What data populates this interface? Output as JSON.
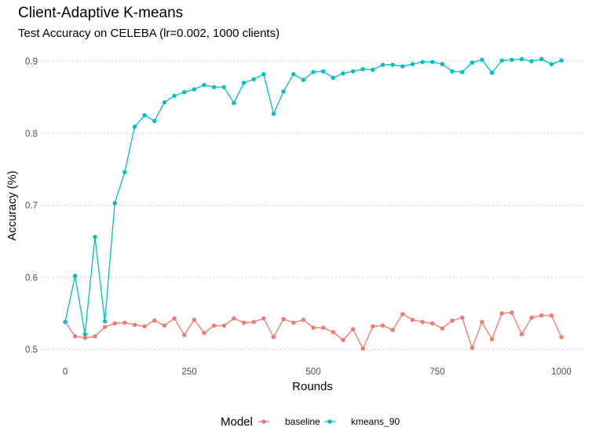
{
  "chart_data": {
    "type": "line",
    "title": "Client-Adaptive K-means",
    "subtitle": "Test Accuracy on CELEBA (lr=0.002, 1000 clients)",
    "xlabel": "Rounds",
    "ylabel": "Accuracy (%)",
    "xlim": [
      0,
      1000
    ],
    "ylim": [
      0.5,
      0.91
    ],
    "xticks": [
      0,
      250,
      500,
      750,
      1000
    ],
    "yticks": [
      0.5,
      0.6,
      0.7,
      0.8,
      0.9
    ],
    "xtick_labels": [
      "0",
      "250",
      "500",
      "750",
      "1000"
    ],
    "ytick_labels": [
      "0.5",
      "0.6",
      "0.7",
      "0.8",
      "0.9"
    ],
    "grid": "horizontal dotted",
    "legend": {
      "title": "Model",
      "position": "bottom"
    },
    "x": [
      0,
      20,
      40,
      60,
      80,
      100,
      120,
      140,
      160,
      180,
      200,
      220,
      240,
      260,
      280,
      300,
      320,
      340,
      360,
      380,
      400,
      420,
      440,
      460,
      480,
      500,
      520,
      540,
      560,
      580,
      600,
      620,
      640,
      660,
      680,
      700,
      720,
      740,
      760,
      780,
      800,
      820,
      840,
      860,
      880,
      900,
      920,
      940,
      960,
      980,
      1000
    ],
    "series": [
      {
        "name": "baseline",
        "color": "#F8766D",
        "values": [
          0.538,
          0.518,
          0.516,
          0.518,
          0.531,
          0.536,
          0.537,
          0.534,
          0.532,
          0.54,
          0.533,
          0.543,
          0.52,
          0.541,
          0.523,
          0.533,
          0.533,
          0.543,
          0.537,
          0.538,
          0.543,
          0.517,
          0.542,
          0.537,
          0.541,
          0.53,
          0.53,
          0.524,
          0.513,
          0.528,
          0.501,
          0.532,
          0.533,
          0.527,
          0.549,
          0.541,
          0.538,
          0.536,
          0.529,
          0.54,
          0.544,
          0.502,
          0.538,
          0.514,
          0.55,
          0.551,
          0.521,
          0.544,
          0.547,
          0.547,
          0.517
        ]
      },
      {
        "name": "kmeans_90",
        "color": "#00BFC4",
        "values": [
          0.538,
          0.602,
          0.521,
          0.656,
          0.539,
          0.703,
          0.746,
          0.809,
          0.825,
          0.817,
          0.843,
          0.852,
          0.857,
          0.861,
          0.867,
          0.864,
          0.864,
          0.842,
          0.87,
          0.875,
          0.882,
          0.827,
          0.858,
          0.882,
          0.874,
          0.885,
          0.886,
          0.877,
          0.883,
          0.886,
          0.889,
          0.888,
          0.895,
          0.895,
          0.893,
          0.896,
          0.899,
          0.899,
          0.896,
          0.886,
          0.885,
          0.898,
          0.902,
          0.884,
          0.901,
          0.902,
          0.903,
          0.9,
          0.903,
          0.896,
          0.901
        ]
      }
    ]
  }
}
